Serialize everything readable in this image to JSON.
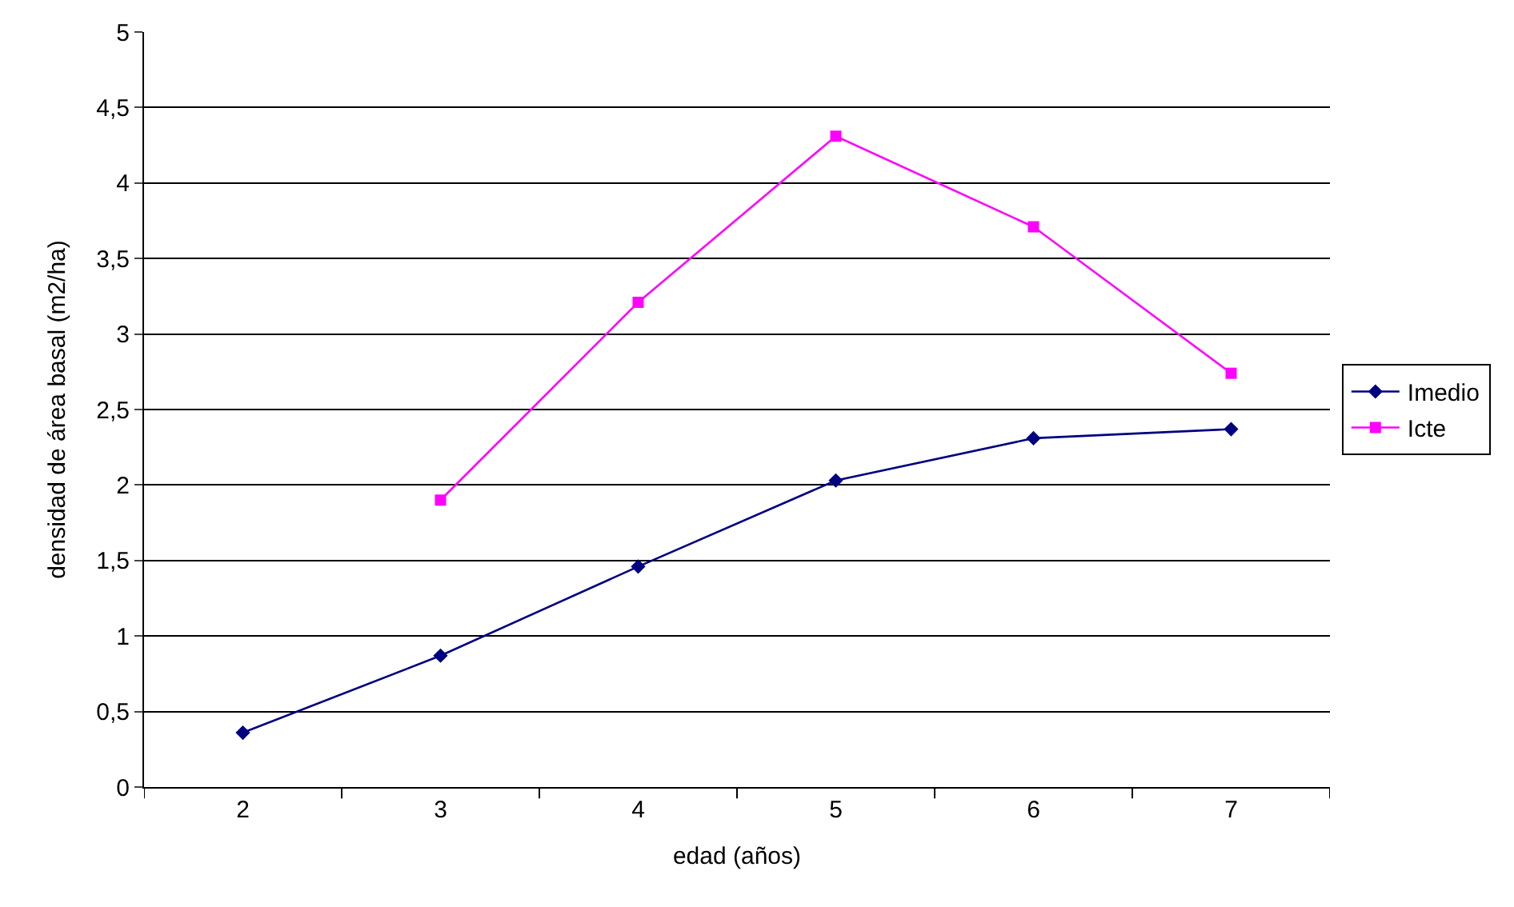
{
  "chart_data": {
    "type": "line",
    "xlabel": "edad (años)",
    "ylabel": "densidad de área basal (m2/ha)",
    "categories": [
      "2",
      "3",
      "4",
      "5",
      "6",
      "7"
    ],
    "series": [
      {
        "name": "Imedio",
        "color": "#000080",
        "marker": "diamond",
        "values": [
          0.36,
          0.87,
          1.46,
          2.03,
          2.31,
          2.37
        ]
      },
      {
        "name": "Icte",
        "color": "#ff00ff",
        "marker": "square",
        "values": [
          null,
          1.9,
          3.21,
          4.31,
          3.71,
          2.74
        ]
      }
    ],
    "ylim": [
      0,
      5
    ],
    "yticks": [
      0,
      {
        "value": 0.5,
        "label": "0,5"
      },
      1,
      {
        "value": 1.5,
        "label": "1,5"
      },
      2,
      {
        "value": 2.5,
        "label": "2,5"
      },
      3,
      {
        "value": 3.5,
        "label": "3,5"
      },
      4,
      {
        "value": 4.5,
        "label": "4,5"
      },
      5
    ],
    "grid": "y",
    "legend": "right",
    "line_style": "solid"
  }
}
